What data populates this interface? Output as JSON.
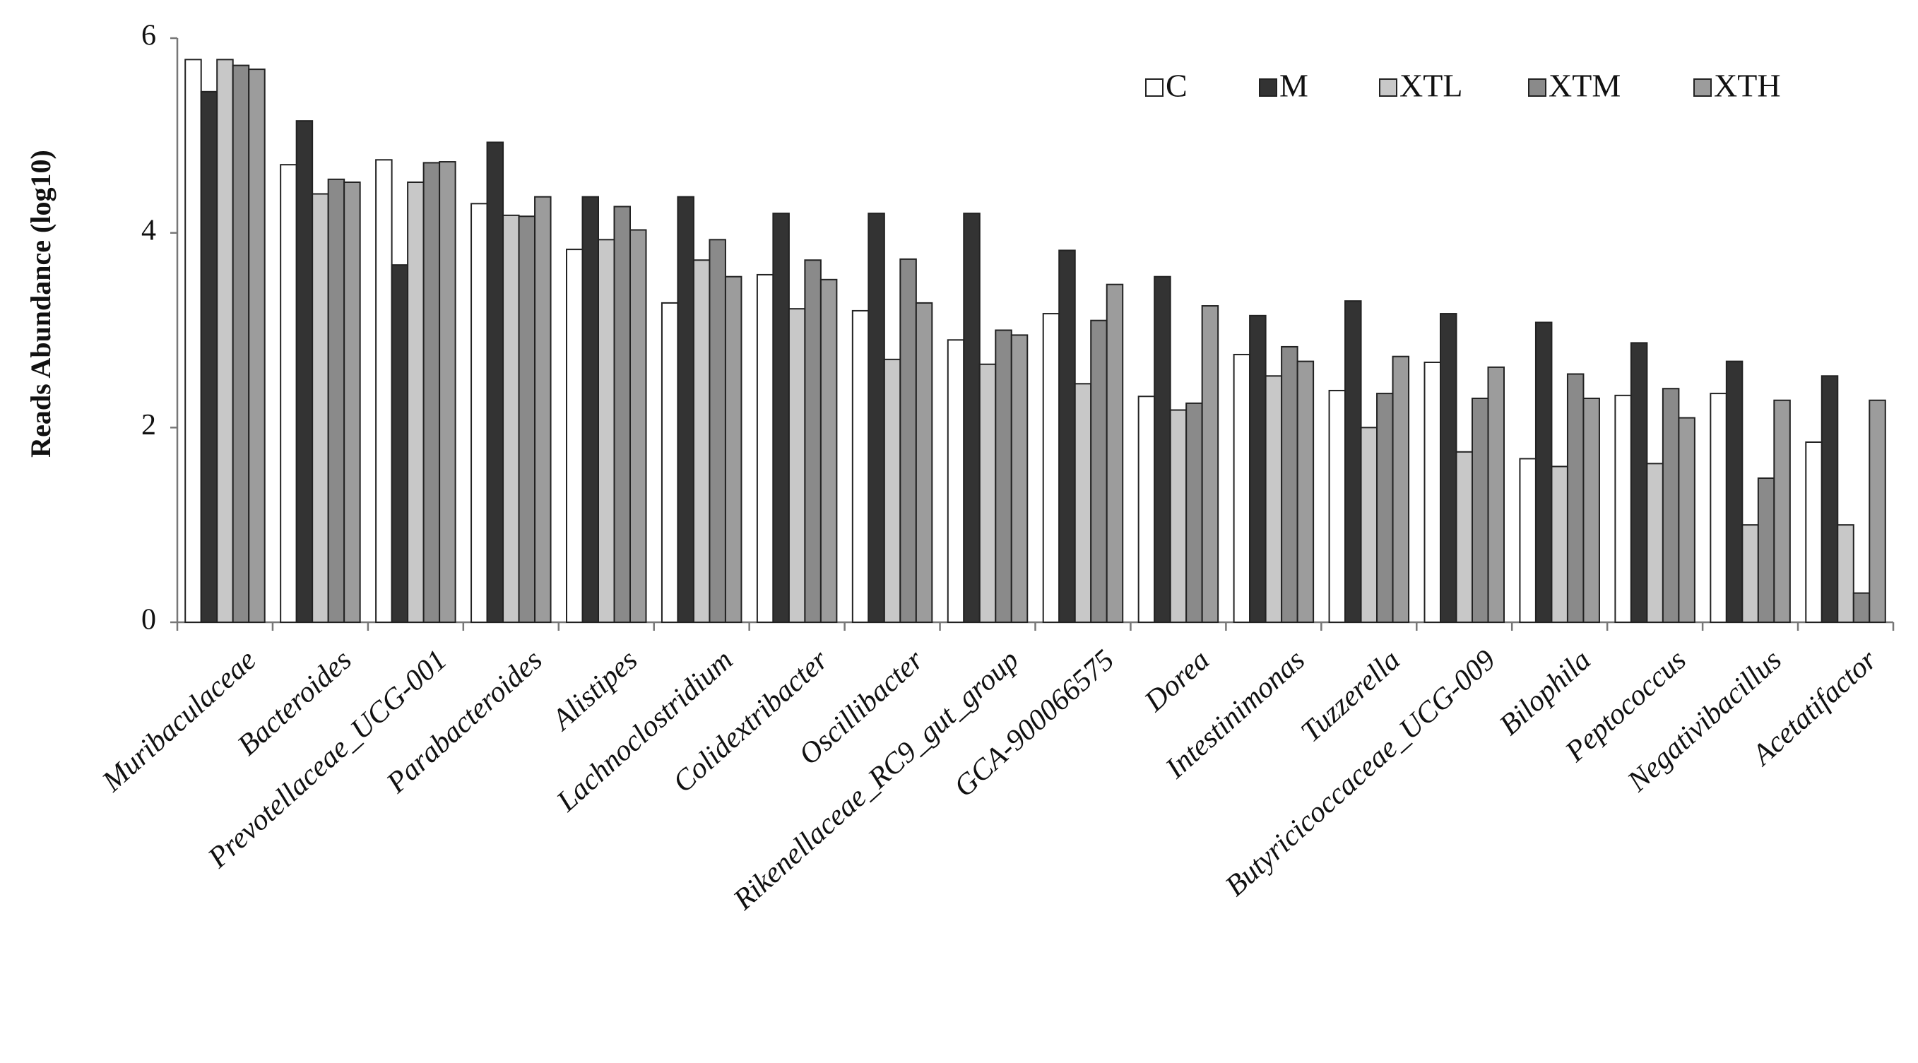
{
  "chart_data": {
    "type": "bar",
    "y_label": "Reads Abundance (log10)",
    "categories": [
      "Muribaculaceae",
      "Bacteroides",
      "Prevotellaceae_UCG-001",
      "Parabacteroides",
      "Alistipes",
      "Lachnoclostridium",
      "Colidextribacter",
      "Oscillibacter",
      "Rikenellaceae_RC9_gut_group",
      "GCA-900066575",
      "Dorea",
      "Intestinimonas",
      "Tuzzerella",
      "Butyricicoccaceae_UCG-009",
      "Bilophila",
      "Peptococcus",
      "Negativibacillus",
      "Acetatifactor"
    ],
    "series": [
      {
        "name": "C",
        "color": "#ffffff",
        "values": [
          5.78,
          4.7,
          4.75,
          4.3,
          3.83,
          3.28,
          3.57,
          3.2,
          2.9,
          3.17,
          2.32,
          2.75,
          2.38,
          2.67,
          1.68,
          2.33,
          2.35,
          1.85
        ]
      },
      {
        "name": "M",
        "color": "#333333",
        "values": [
          5.45,
          5.15,
          3.67,
          4.93,
          4.37,
          4.37,
          4.2,
          4.2,
          4.2,
          3.82,
          3.55,
          3.15,
          3.3,
          3.17,
          3.08,
          2.87,
          2.68,
          2.53
        ]
      },
      {
        "name": "XTL",
        "color": "#c8c8c8",
        "values": [
          5.78,
          4.4,
          4.52,
          4.18,
          3.93,
          3.72,
          3.22,
          2.7,
          2.65,
          2.45,
          2.18,
          2.53,
          2.0,
          1.75,
          1.6,
          1.63,
          1.0,
          1.0
        ]
      },
      {
        "name": "XTM",
        "color": "#8a8a8a",
        "values": [
          5.72,
          4.55,
          4.72,
          4.17,
          4.27,
          3.93,
          3.72,
          3.73,
          3.0,
          3.1,
          2.25,
          2.83,
          2.35,
          2.3,
          2.55,
          2.4,
          1.48,
          0.3
        ]
      },
      {
        "name": "XTH",
        "color": "#9c9c9c",
        "values": [
          5.68,
          4.52,
          4.73,
          4.37,
          4.03,
          3.55,
          3.52,
          3.28,
          2.95,
          3.47,
          3.25,
          2.68,
          2.73,
          2.62,
          2.3,
          2.1,
          2.28,
          2.28
        ]
      }
    ],
    "ylim": [
      0,
      6
    ],
    "yticks": [
      0,
      2,
      4,
      6
    ],
    "grid": false
  }
}
